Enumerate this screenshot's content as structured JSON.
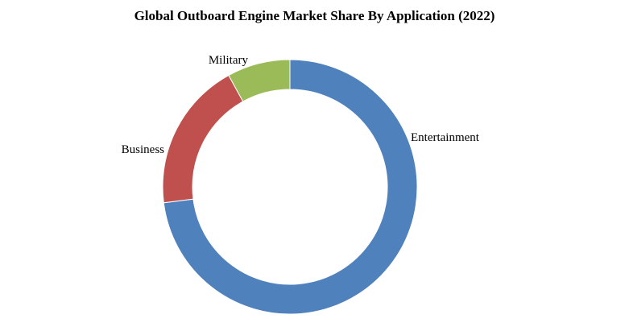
{
  "chart_data": {
    "type": "pie",
    "title": "Global Outboard Engine Market Share By Application (2022)",
    "donut": true,
    "slices": [
      {
        "label": "Entertainment",
        "value": 73,
        "color": "#4F81BD"
      },
      {
        "label": "Business",
        "value": 19,
        "color": "#C0504D"
      },
      {
        "label": "Military",
        "value": 8,
        "color": "#9BBB59"
      }
    ]
  }
}
